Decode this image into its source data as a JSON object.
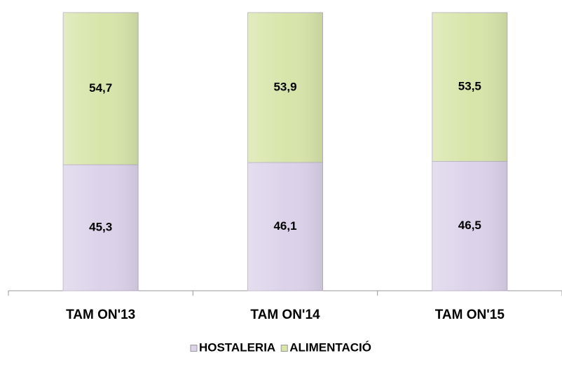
{
  "chart_data": {
    "type": "stacked_bar",
    "categories": [
      "TAM ON'13",
      "TAM ON'14",
      "TAM ON'15"
    ],
    "series": [
      {
        "name": "HOSTALERIA",
        "color": "#dcd3ea",
        "values": [
          45.3,
          46.1,
          46.5
        ],
        "value_labels": [
          "45,3",
          "46,1",
          "46,5"
        ]
      },
      {
        "name": "ALIMENTACIÓ",
        "color": "#d8e5aa",
        "values": [
          54.7,
          53.9,
          53.5
        ],
        "value_labels": [
          "54,7",
          "53,9",
          "53,5"
        ]
      }
    ],
    "legend": "bottom"
  }
}
